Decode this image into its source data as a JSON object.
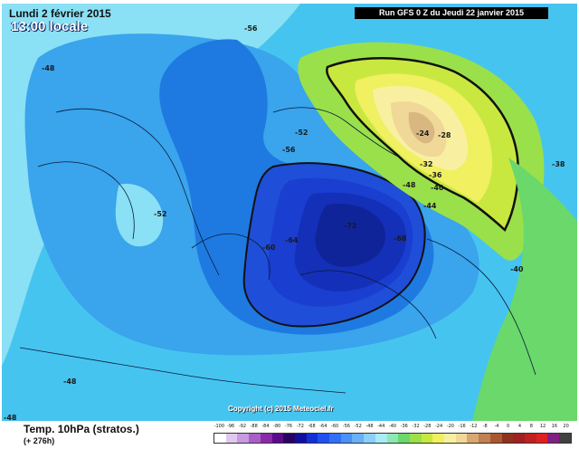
{
  "header": {
    "date": "Lundi 2 février 2015",
    "local_time": "13:00 locale",
    "run_info": "Run GFS 0 Z du Jeudi 22 janvier 2015"
  },
  "footer": {
    "field": "Temp. 10hPa (stratos.)",
    "lead_time": "(+ 276h)",
    "copyright": "Copyright (c) 2015 Meteociel.fr"
  },
  "contour_labels": [
    "-56",
    "-48",
    "-52",
    "-56",
    "-60",
    "-64",
    "-72",
    "-68",
    "-52",
    "-48",
    "-48",
    "-44",
    "-40",
    "-40",
    "-36",
    "-32",
    "-28",
    "-24",
    "-38",
    "-48"
  ],
  "color_scale": {
    "labels": [
      "-100",
      "-96",
      "-92",
      "-88",
      "-84",
      "-80",
      "-76",
      "-72",
      "-68",
      "-64",
      "-60",
      "-56",
      "-52",
      "-48",
      "-44",
      "-40",
      "-36",
      "-32",
      "-28",
      "-24",
      "-20",
      "-16",
      "-12",
      "-8",
      "-4",
      "0",
      "4",
      "8",
      "12",
      "16",
      "20"
    ],
    "colors": [
      "#ffffff",
      "#e0c8f0",
      "#c89ae0",
      "#a860c8",
      "#8a2aa8",
      "#5a0a8a",
      "#2a0060",
      "#1010a0",
      "#1030d8",
      "#2050f0",
      "#3070f8",
      "#4a90f8",
      "#6ab0f8",
      "#8ad0f8",
      "#a8ecf4",
      "#8ce8b4",
      "#6ad86a",
      "#9ae04a",
      "#c8e840",
      "#f0f060",
      "#f8f0a0",
      "#f0d898",
      "#d8a870",
      "#c08050",
      "#a85830",
      "#903020",
      "#a02020",
      "#c02020",
      "#e02020",
      "#802080",
      "#404040"
    ]
  }
}
